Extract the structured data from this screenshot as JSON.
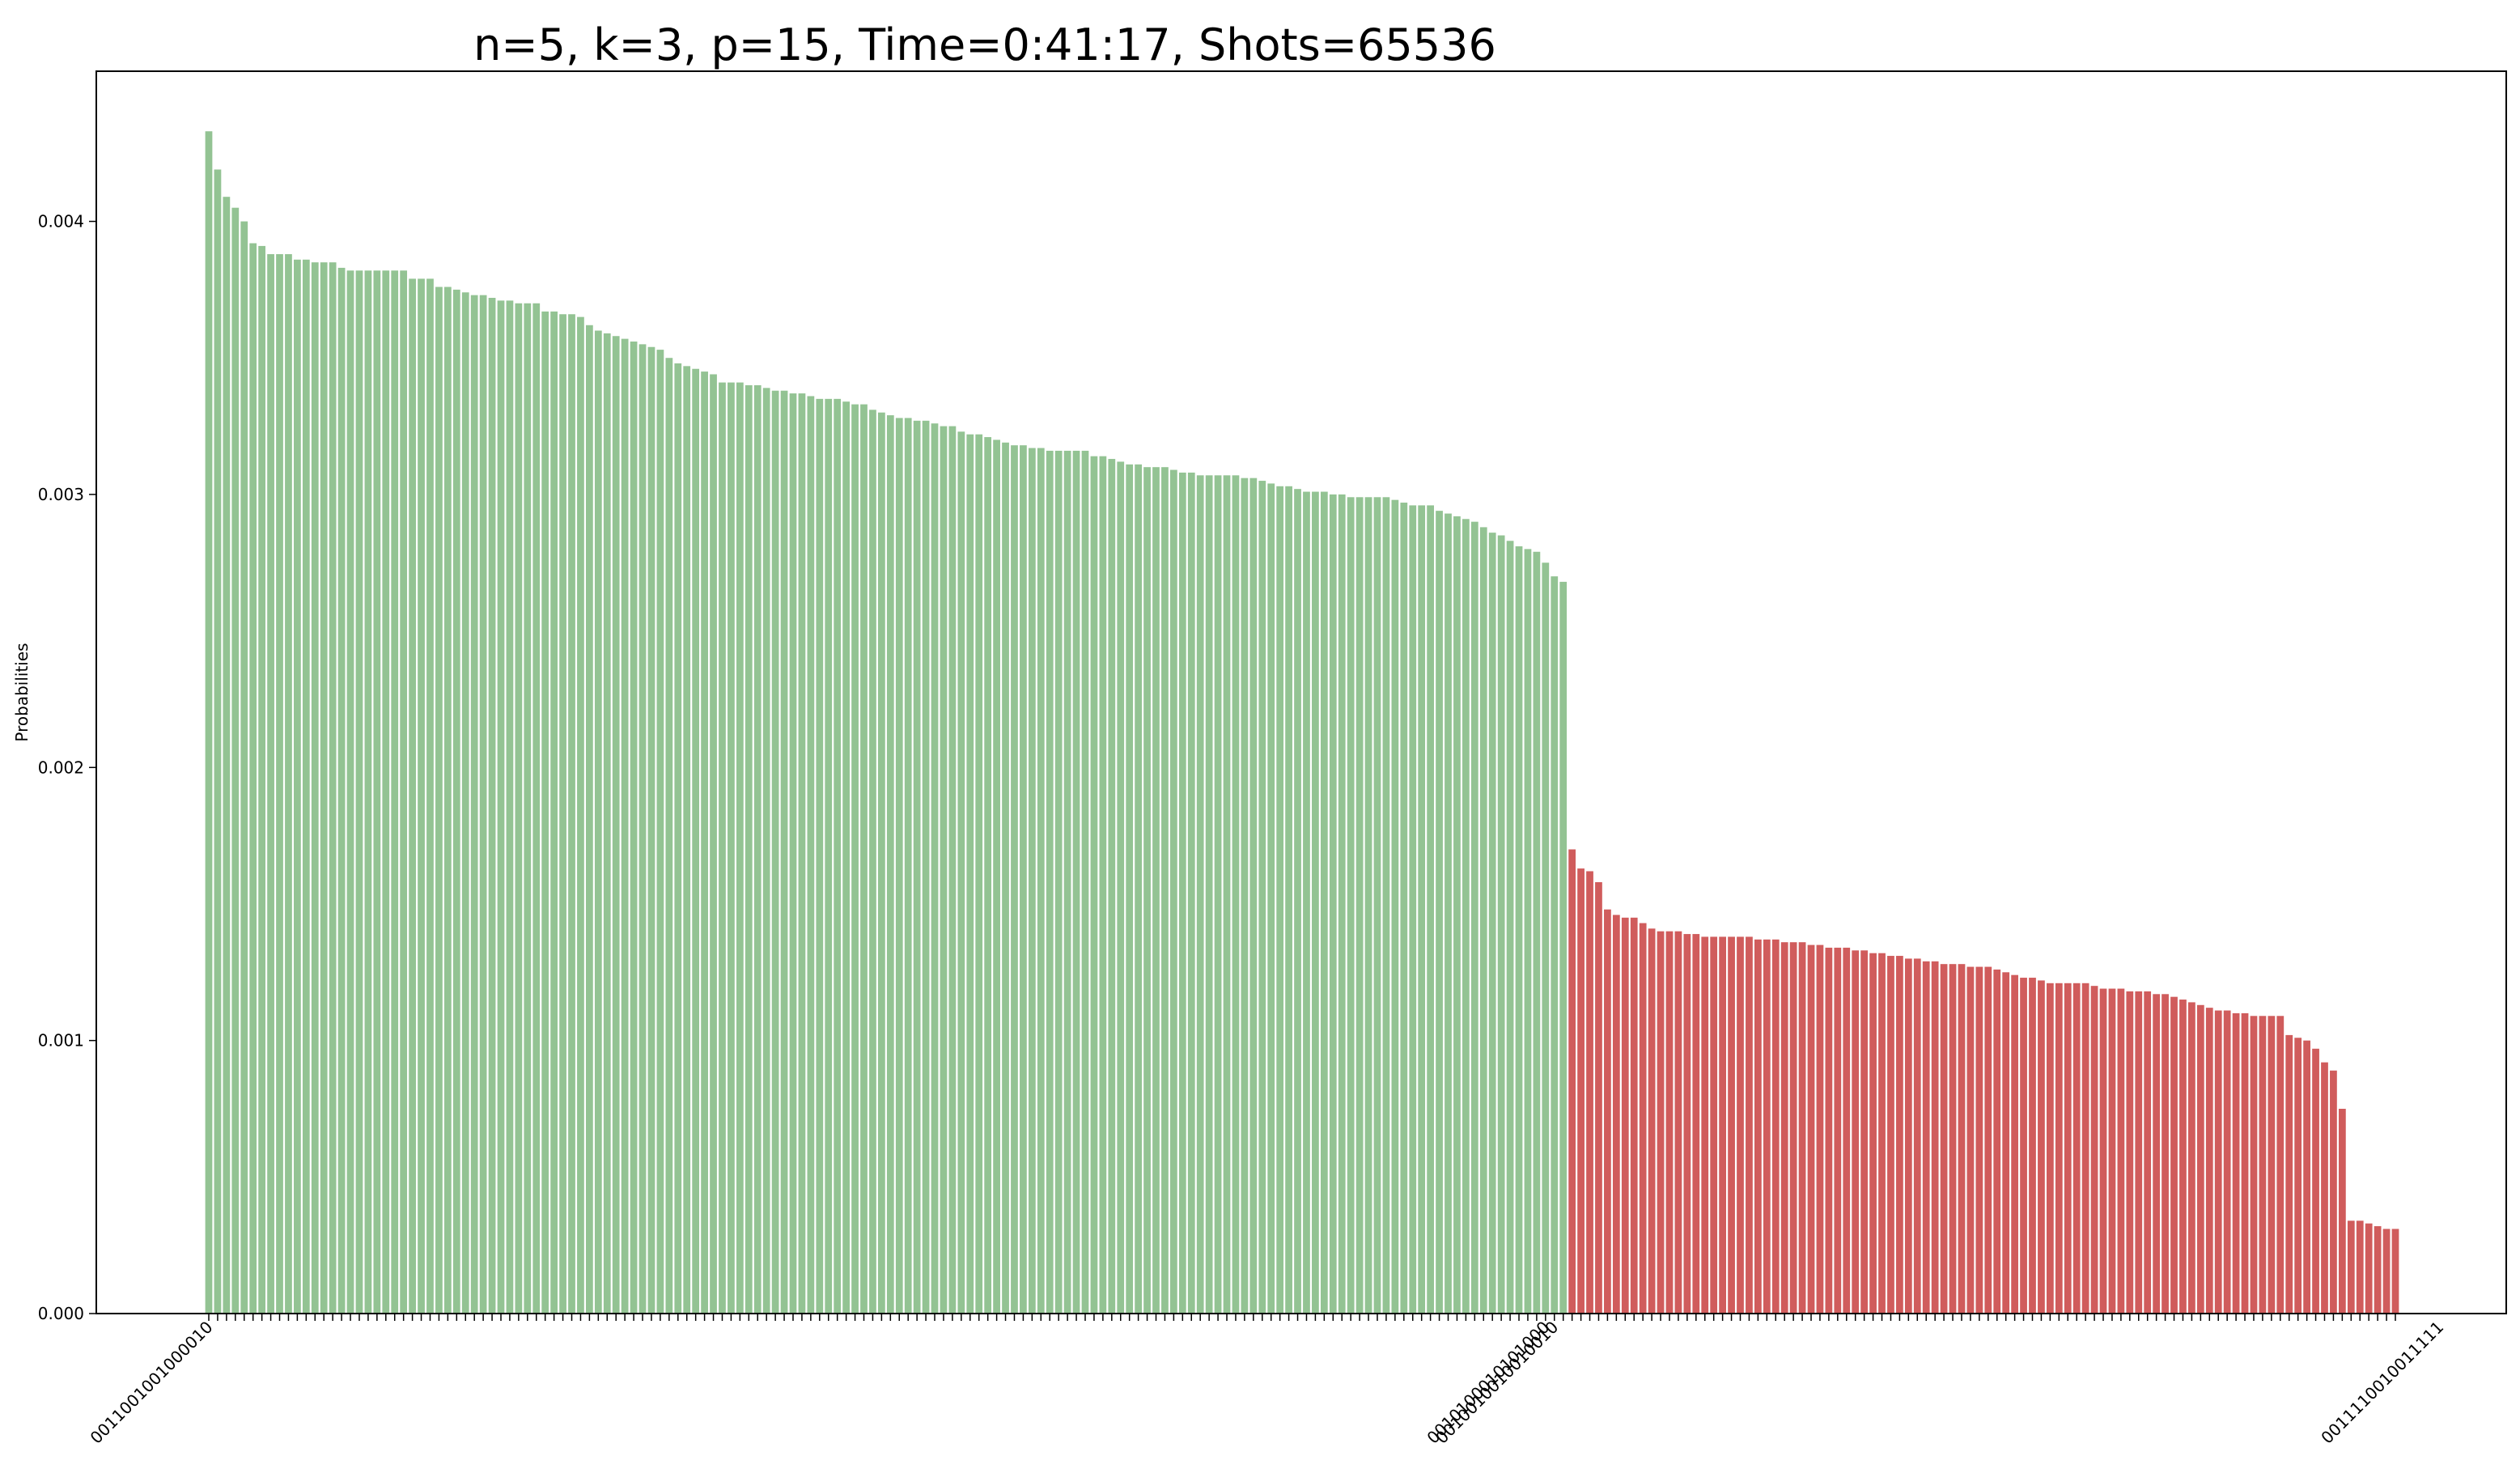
{
  "chart_data": {
    "type": "bar",
    "title": "n=5, k=3, p=15, Time=0:41:17, Shots=65536",
    "xlabel": "",
    "ylabel": "Probabilities",
    "ylim": [
      0,
      0.00455
    ],
    "yticks": [
      0,
      0.001,
      0.002,
      0.003,
      0.004
    ],
    "ytick_labels": [
      "0.000",
      "0.001",
      "0.002",
      "0.003",
      "0.004"
    ],
    "grid": false,
    "legend": "none",
    "colors": {
      "group1": "#93c393",
      "group2": "#d05c5c"
    },
    "xtick_labels": [
      {
        "index": 0,
        "label": "0011001001000010"
      },
      {
        "index": 151,
        "label": "0010100010101000"
      },
      {
        "index": 152,
        "label": "0010010010010010"
      },
      {
        "index": 252,
        "label": "0011110010011111"
      }
    ],
    "series": [
      {
        "values": [
          0.00433,
          0.00419,
          0.00409,
          0.00405,
          0.004,
          0.00392,
          0.00391,
          0.00388,
          0.00388,
          0.00388,
          0.00386,
          0.00386,
          0.00385,
          0.00385,
          0.00385,
          0.00383,
          0.00382,
          0.00382,
          0.00382,
          0.00382,
          0.00382,
          0.00382,
          0.00382,
          0.00379,
          0.00379,
          0.00379,
          0.00376,
          0.00376,
          0.00375,
          0.00374,
          0.00373,
          0.00373,
          0.00372,
          0.00371,
          0.00371,
          0.0037,
          0.0037,
          0.0037,
          0.00367,
          0.00367,
          0.00366,
          0.00366,
          0.00365,
          0.00362,
          0.0036,
          0.00359,
          0.00358,
          0.00357,
          0.00356,
          0.00355,
          0.00354,
          0.00353,
          0.0035,
          0.00348,
          0.00347,
          0.00346,
          0.00345,
          0.00344,
          0.00341,
          0.00341,
          0.00341,
          0.0034,
          0.0034,
          0.00339,
          0.00338,
          0.00338,
          0.00337,
          0.00337,
          0.00336,
          0.00335,
          0.00335,
          0.00335,
          0.00334,
          0.00333,
          0.00333,
          0.00331,
          0.0033,
          0.00329,
          0.00328,
          0.00328,
          0.00327,
          0.00327,
          0.00326,
          0.00325,
          0.00325,
          0.00323,
          0.00322,
          0.00322,
          0.00321,
          0.0032,
          0.00319,
          0.00318,
          0.00318,
          0.00317,
          0.00317,
          0.00316,
          0.00316,
          0.00316,
          0.00316,
          0.00316,
          0.00314,
          0.00314,
          0.00313,
          0.00312,
          0.00311,
          0.00311,
          0.0031,
          0.0031,
          0.0031,
          0.00309,
          0.00308,
          0.00308,
          0.00307,
          0.00307,
          0.00307,
          0.00307,
          0.00307,
          0.00306,
          0.00306,
          0.00305,
          0.00304,
          0.00303,
          0.00303,
          0.00302,
          0.00301,
          0.00301,
          0.00301,
          0.003,
          0.003,
          0.00299,
          0.00299,
          0.00299,
          0.00299,
          0.00299,
          0.00298,
          0.00297,
          0.00296,
          0.00296,
          0.00296,
          0.00294,
          0.00293,
          0.00292,
          0.00291,
          0.0029,
          0.00288,
          0.00286,
          0.00285,
          0.00283,
          0.00281,
          0.0028,
          0.00279,
          0.00275,
          0.0027,
          0.00268
        ]
      },
      {
        "values": [
          0.0017,
          0.00163,
          0.00162,
          0.00158,
          0.00148,
          0.00146,
          0.00145,
          0.00145,
          0.00143,
          0.00141,
          0.0014,
          0.0014,
          0.0014,
          0.00139,
          0.00139,
          0.00138,
          0.00138,
          0.00138,
          0.00138,
          0.00138,
          0.00138,
          0.00137,
          0.00137,
          0.00137,
          0.00136,
          0.00136,
          0.00136,
          0.00135,
          0.00135,
          0.00134,
          0.00134,
          0.00134,
          0.00133,
          0.00133,
          0.00132,
          0.00132,
          0.00131,
          0.00131,
          0.0013,
          0.0013,
          0.00129,
          0.00129,
          0.00128,
          0.00128,
          0.00128,
          0.00127,
          0.00127,
          0.00127,
          0.00126,
          0.00125,
          0.00124,
          0.00123,
          0.00123,
          0.00122,
          0.00121,
          0.00121,
          0.00121,
          0.00121,
          0.00121,
          0.0012,
          0.00119,
          0.00119,
          0.00119,
          0.00118,
          0.00118,
          0.00118,
          0.00117,
          0.00117,
          0.00116,
          0.00115,
          0.00114,
          0.00113,
          0.00112,
          0.00111,
          0.00111,
          0.0011,
          0.0011,
          0.00109,
          0.00109,
          0.00109,
          0.00109,
          0.00102,
          0.00101,
          0.001,
          0.00097,
          0.00092,
          0.00089,
          0.00075,
          0.00034,
          0.00034,
          0.00033,
          0.00032,
          0.00031,
          0.00031
        ]
      }
    ]
  }
}
